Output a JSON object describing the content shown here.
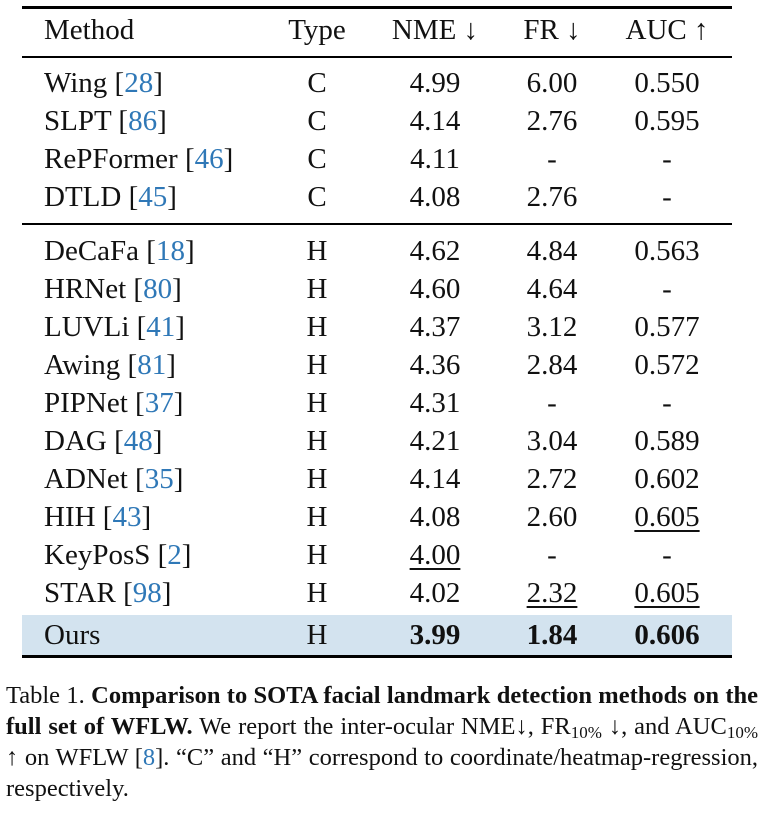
{
  "header": {
    "method": "Method",
    "type": "Type",
    "nme": "NME ↓",
    "fr": "FR ↓",
    "auc": "AUC ↑"
  },
  "group_c": [
    {
      "name": "Wing",
      "ref": "28",
      "type": "C",
      "nme": "4.99",
      "fr": "6.00",
      "auc": "0.550"
    },
    {
      "name": "SLPT",
      "ref": "86",
      "type": "C",
      "nme": "4.14",
      "fr": "2.76",
      "auc": "0.595"
    },
    {
      "name": "RePFormer",
      "ref": "46",
      "type": "C",
      "nme": "4.11",
      "fr": "-",
      "auc": "-"
    },
    {
      "name": "DTLD",
      "ref": "45",
      "type": "C",
      "nme": "4.08",
      "fr": "2.76",
      "auc": "-"
    }
  ],
  "group_h": [
    {
      "name": "DeCaFa",
      "ref": "18",
      "type": "H",
      "nme": "4.62",
      "fr": "4.84",
      "auc": "0.563"
    },
    {
      "name": "HRNet",
      "ref": "80",
      "type": "H",
      "nme": "4.60",
      "fr": "4.64",
      "auc": "-"
    },
    {
      "name": "LUVLi",
      "ref": "41",
      "type": "H",
      "nme": "4.37",
      "fr": "3.12",
      "auc": "0.577"
    },
    {
      "name": "Awing",
      "ref": "81",
      "type": "H",
      "nme": "4.36",
      "fr": "2.84",
      "auc": "0.572"
    },
    {
      "name": "PIPNet",
      "ref": "37",
      "type": "H",
      "nme": "4.31",
      "fr": "-",
      "auc": "-"
    },
    {
      "name": "DAG",
      "ref": "48",
      "type": "H",
      "nme": "4.21",
      "fr": "3.04",
      "auc": "0.589"
    },
    {
      "name": "ADNet",
      "ref": "35",
      "type": "H",
      "nme": "4.14",
      "fr": "2.72",
      "auc": "0.602"
    },
    {
      "name": "HIH",
      "ref": "43",
      "type": "H",
      "nme": "4.08",
      "fr": "2.60",
      "auc": "0.605"
    },
    {
      "name": "KeyPosS",
      "ref": "2",
      "type": "H",
      "nme": "4.00",
      "fr": "-",
      "auc": "-"
    },
    {
      "name": "STAR",
      "ref": "98",
      "type": "H",
      "nme": "4.02",
      "fr": "2.32",
      "auc": "0.605"
    }
  ],
  "ours": {
    "name": "Ours",
    "type": "H",
    "nme": "3.99",
    "fr": "1.84",
    "auc": "0.606"
  },
  "caption": {
    "label": "Table 1.",
    "bold": "Comparison to SOTA facial landmark detection methods on the full set of WFLW.",
    "text1": "We report the inter-ocular NME↓,",
    "fr": "FR",
    "sub": "10%",
    "text2": "↓, and AUC",
    "text3": "↑ on WFLW [",
    "ref": "8",
    "text4": "]. “C” and “H” correspond to coordinate/heatmap-regression, respectively."
  }
}
